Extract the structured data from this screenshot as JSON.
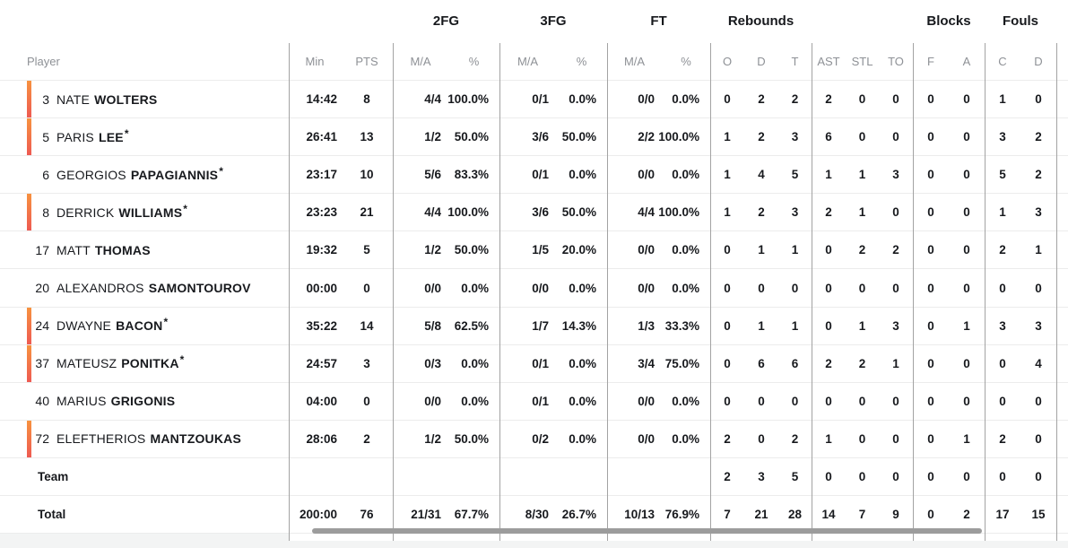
{
  "table": {
    "groups": [
      "2FG",
      "3FG",
      "FT",
      "Rebounds",
      "Blocks",
      "Fouls"
    ],
    "columns": {
      "player": "Player",
      "min": "Min",
      "pts": "PTS",
      "ma": "M/A",
      "pct": "%",
      "o": "O",
      "d": "D",
      "t": "T",
      "ast": "AST",
      "stl": "STL",
      "to": "TO",
      "f": "F",
      "a": "A",
      "c": "C"
    },
    "players": [
      {
        "on_court": true,
        "number": "3",
        "first": "NATE",
        "last": "WOLTERS",
        "star": "",
        "min": "14:42",
        "pts": "8",
        "fg2": "4/4",
        "fg2_pct": "100.0%",
        "fg3": "0/1",
        "fg3_pct": "0.0%",
        "ft": "0/0",
        "ft_pct": "0.0%",
        "reb_o": "0",
        "reb_d": "2",
        "reb_t": "2",
        "ast": "2",
        "stl": "0",
        "to": "0",
        "blk_f": "0",
        "blk_a": "0",
        "foul_c": "1",
        "foul_d": "0"
      },
      {
        "on_court": true,
        "number": "5",
        "first": "PARIS",
        "last": "LEE",
        "star": "*",
        "min": "26:41",
        "pts": "13",
        "fg2": "1/2",
        "fg2_pct": "50.0%",
        "fg3": "3/6",
        "fg3_pct": "50.0%",
        "ft": "2/2",
        "ft_pct": "100.0%",
        "reb_o": "1",
        "reb_d": "2",
        "reb_t": "3",
        "ast": "6",
        "stl": "0",
        "to": "0",
        "blk_f": "0",
        "blk_a": "0",
        "foul_c": "3",
        "foul_d": "2"
      },
      {
        "on_court": false,
        "number": "6",
        "first": "GEORGIOS",
        "last": "PAPAGIANNIS",
        "star": "*",
        "min": "23:17",
        "pts": "10",
        "fg2": "5/6",
        "fg2_pct": "83.3%",
        "fg3": "0/1",
        "fg3_pct": "0.0%",
        "ft": "0/0",
        "ft_pct": "0.0%",
        "reb_o": "1",
        "reb_d": "4",
        "reb_t": "5",
        "ast": "1",
        "stl": "1",
        "to": "3",
        "blk_f": "0",
        "blk_a": "0",
        "foul_c": "5",
        "foul_d": "2"
      },
      {
        "on_court": true,
        "number": "8",
        "first": "DERRICK",
        "last": "WILLIAMS",
        "star": "*",
        "min": "23:23",
        "pts": "21",
        "fg2": "4/4",
        "fg2_pct": "100.0%",
        "fg3": "3/6",
        "fg3_pct": "50.0%",
        "ft": "4/4",
        "ft_pct": "100.0%",
        "reb_o": "1",
        "reb_d": "2",
        "reb_t": "3",
        "ast": "2",
        "stl": "1",
        "to": "0",
        "blk_f": "0",
        "blk_a": "0",
        "foul_c": "1",
        "foul_d": "3"
      },
      {
        "on_court": false,
        "number": "17",
        "first": "MATT",
        "last": "THOMAS",
        "star": "",
        "min": "19:32",
        "pts": "5",
        "fg2": "1/2",
        "fg2_pct": "50.0%",
        "fg3": "1/5",
        "fg3_pct": "20.0%",
        "ft": "0/0",
        "ft_pct": "0.0%",
        "reb_o": "0",
        "reb_d": "1",
        "reb_t": "1",
        "ast": "0",
        "stl": "2",
        "to": "2",
        "blk_f": "0",
        "blk_a": "0",
        "foul_c": "2",
        "foul_d": "1"
      },
      {
        "on_court": false,
        "number": "20",
        "first": "ALEXANDROS",
        "last": "SAMONTOUROV",
        "star": "",
        "min": "00:00",
        "pts": "0",
        "fg2": "0/0",
        "fg2_pct": "0.0%",
        "fg3": "0/0",
        "fg3_pct": "0.0%",
        "ft": "0/0",
        "ft_pct": "0.0%",
        "reb_o": "0",
        "reb_d": "0",
        "reb_t": "0",
        "ast": "0",
        "stl": "0",
        "to": "0",
        "blk_f": "0",
        "blk_a": "0",
        "foul_c": "0",
        "foul_d": "0"
      },
      {
        "on_court": true,
        "number": "24",
        "first": "DWAYNE",
        "last": "BACON",
        "star": "*",
        "min": "35:22",
        "pts": "14",
        "fg2": "5/8",
        "fg2_pct": "62.5%",
        "fg3": "1/7",
        "fg3_pct": "14.3%",
        "ft": "1/3",
        "ft_pct": "33.3%",
        "reb_o": "0",
        "reb_d": "1",
        "reb_t": "1",
        "ast": "0",
        "stl": "1",
        "to": "3",
        "blk_f": "0",
        "blk_a": "1",
        "foul_c": "3",
        "foul_d": "3"
      },
      {
        "on_court": true,
        "number": "37",
        "first": "MATEUSZ",
        "last": "PONITKA",
        "star": "*",
        "min": "24:57",
        "pts": "3",
        "fg2": "0/3",
        "fg2_pct": "0.0%",
        "fg3": "0/1",
        "fg3_pct": "0.0%",
        "ft": "3/4",
        "ft_pct": "75.0%",
        "reb_o": "0",
        "reb_d": "6",
        "reb_t": "6",
        "ast": "2",
        "stl": "2",
        "to": "1",
        "blk_f": "0",
        "blk_a": "0",
        "foul_c": "0",
        "foul_d": "4"
      },
      {
        "on_court": false,
        "number": "40",
        "first": "MARIUS",
        "last": "GRIGONIS",
        "star": "",
        "min": "04:00",
        "pts": "0",
        "fg2": "0/0",
        "fg2_pct": "0.0%",
        "fg3": "0/1",
        "fg3_pct": "0.0%",
        "ft": "0/0",
        "ft_pct": "0.0%",
        "reb_o": "0",
        "reb_d": "0",
        "reb_t": "0",
        "ast": "0",
        "stl": "0",
        "to": "0",
        "blk_f": "0",
        "blk_a": "0",
        "foul_c": "0",
        "foul_d": "0"
      },
      {
        "on_court": true,
        "number": "72",
        "first": "ELEFTHERIOS",
        "last": "MANTZOUKAS",
        "star": "",
        "min": "28:06",
        "pts": "2",
        "fg2": "1/2",
        "fg2_pct": "50.0%",
        "fg3": "0/2",
        "fg3_pct": "0.0%",
        "ft": "0/0",
        "ft_pct": "0.0%",
        "reb_o": "2",
        "reb_d": "0",
        "reb_t": "2",
        "ast": "1",
        "stl": "0",
        "to": "0",
        "blk_f": "0",
        "blk_a": "1",
        "foul_c": "2",
        "foul_d": "0"
      }
    ],
    "team_row": {
      "label": "Team",
      "min": "",
      "pts": "",
      "fg2": "",
      "fg2_pct": "",
      "fg3": "",
      "fg3_pct": "",
      "ft": "",
      "ft_pct": "",
      "reb_o": "2",
      "reb_d": "3",
      "reb_t": "5",
      "ast": "0",
      "stl": "0",
      "to": "0",
      "blk_f": "0",
      "blk_a": "0",
      "foul_c": "0",
      "foul_d": "0"
    },
    "total_row": {
      "label": "Total",
      "min": "200:00",
      "pts": "76",
      "fg2": "21/31",
      "fg2_pct": "67.7%",
      "fg3": "8/30",
      "fg3_pct": "26.7%",
      "ft": "10/13",
      "ft_pct": "76.9%",
      "reb_o": "7",
      "reb_d": "21",
      "reb_t": "28",
      "ast": "14",
      "stl": "7",
      "to": "9",
      "blk_f": "0",
      "blk_a": "2",
      "foul_c": "17",
      "foul_d": "15"
    }
  },
  "colors": {
    "on_court_indicator_top": "#f7923f",
    "on_court_indicator_bottom": "#ee5a52",
    "column_divider": "#a3a3a3",
    "row_divider": "#ececec",
    "header_text": "#8e9196",
    "scrollbar_thumb": "#9c9c9c"
  }
}
